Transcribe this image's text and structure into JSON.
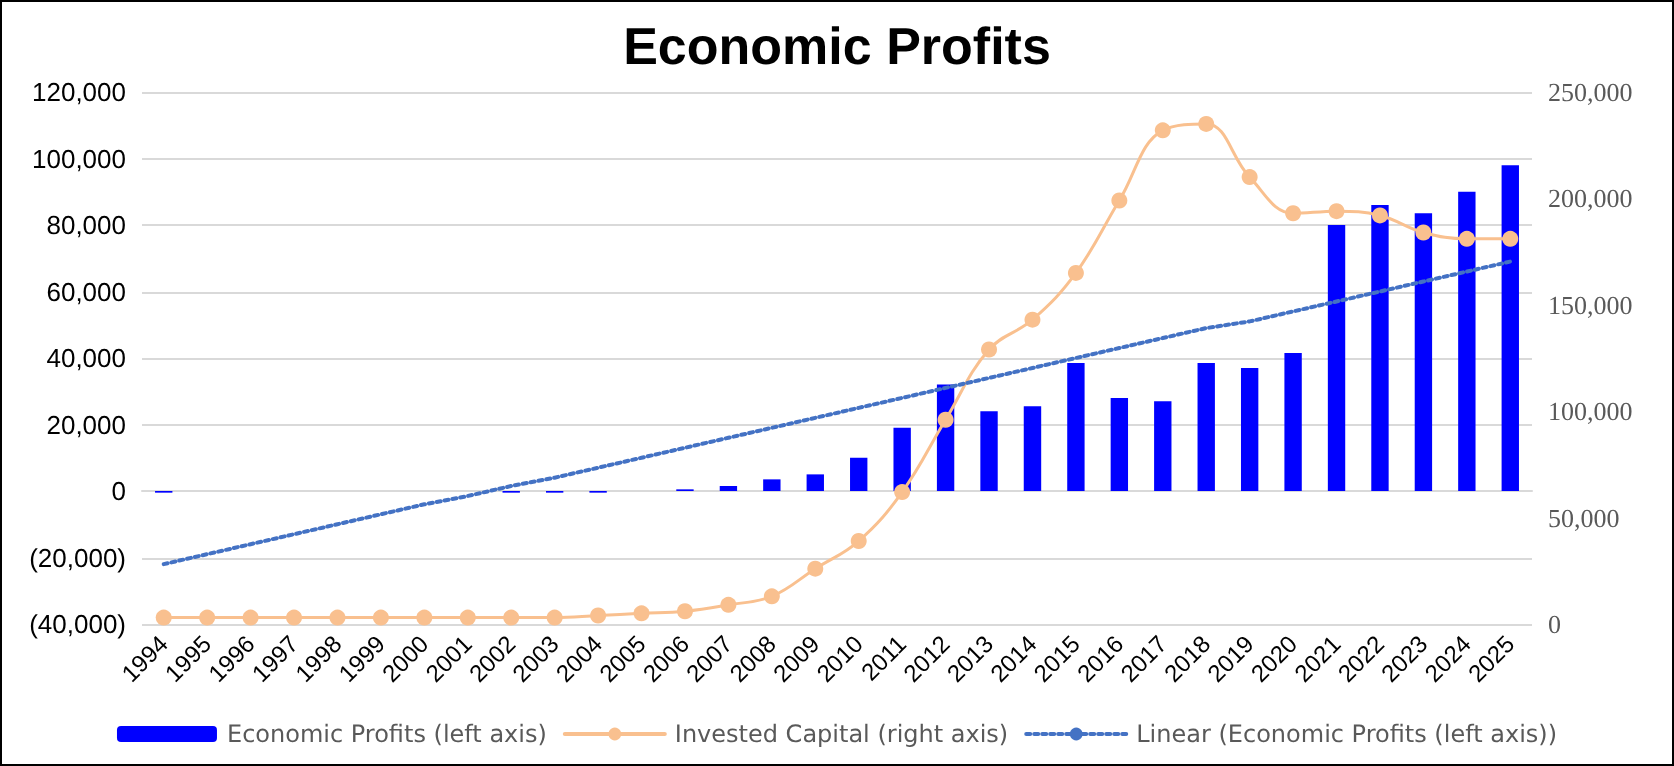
{
  "chart_data": {
    "type": "bar",
    "title": "Economic Profits",
    "categories": [
      "1994",
      "1995",
      "1996",
      "1997",
      "1998",
      "1999",
      "2000",
      "2001",
      "2002",
      "2003",
      "2004",
      "2005",
      "2006",
      "2007",
      "2008",
      "2009",
      "2010",
      "2011",
      "2012",
      "2013",
      "2014",
      "2015",
      "2016",
      "2017",
      "2018",
      "2019",
      "2020",
      "2021",
      "2022",
      "2023",
      "2024",
      "2025"
    ],
    "series": [
      {
        "name": "Economic Profits (left axis)",
        "color": "#0000ff",
        "values": [
          -500,
          0,
          0,
          0,
          0,
          0,
          0,
          0,
          -500,
          -500,
          -500,
          0,
          500,
          1500,
          3500,
          5000,
          10000,
          19000,
          32000,
          24000,
          25500,
          38500,
          28000,
          27000,
          38500,
          37000,
          41500,
          80000,
          86000,
          83500,
          90000,
          98000
        ]
      },
      {
        "name": "Invested Capital (right axis)",
        "type": "line",
        "axis": "y2",
        "color": "#f9c08f",
        "marker": "circle",
        "line_style": "solid",
        "values": [
          3000,
          3000,
          3000,
          3000,
          3000,
          3000,
          3000,
          3000,
          3000,
          3000,
          4000,
          5000,
          6000,
          9000,
          13000,
          26000,
          39000,
          62000,
          96000,
          129000,
          143000,
          165000,
          199000,
          232000,
          235000,
          210000,
          193000,
          194000,
          192000,
          184000,
          181000,
          181000
        ]
      },
      {
        "name": "Linear (Economic Profits (left axis))",
        "type": "line",
        "color": "#4472c4",
        "marker": "none",
        "line_style": "dotted",
        "values": [
          -22000,
          -19000,
          -16000,
          -13000,
          -10000,
          -7000,
          -4000,
          -1500,
          1500,
          4000,
          7000,
          10000,
          13000,
          16000,
          19000,
          22000,
          25000,
          28000,
          31000,
          34000,
          37000,
          40000,
          43000,
          46000,
          49000,
          51000,
          54000,
          57000,
          60000,
          63000,
          66000,
          69000
        ]
      }
    ],
    "ylim": [
      -40000,
      120000
    ],
    "yticks": [
      {
        "value": -40000,
        "label": "(40,000)"
      },
      {
        "value": -20000,
        "label": "(20,000)"
      },
      {
        "value": 0,
        "label": "0"
      },
      {
        "value": 20000,
        "label": "20,000"
      },
      {
        "value": 40000,
        "label": "40,000"
      },
      {
        "value": 60000,
        "label": "60,000"
      },
      {
        "value": 80000,
        "label": "80,000"
      },
      {
        "value": 100000,
        "label": "100,000"
      },
      {
        "value": 120000,
        "label": "120,000"
      }
    ],
    "y2lim": [
      0,
      250000
    ],
    "y2ticks": [
      0,
      {
        "value": 50000,
        "label": "50,000"
      },
      {
        "value": 100000,
        "label": "100,000"
      },
      {
        "value": 150000,
        "label": "150,000"
      },
      {
        "value": 200000,
        "label": "200,000"
      },
      {
        "value": 250000,
        "label": "250,000"
      }
    ],
    "grid": "y",
    "legend": "bottom"
  }
}
